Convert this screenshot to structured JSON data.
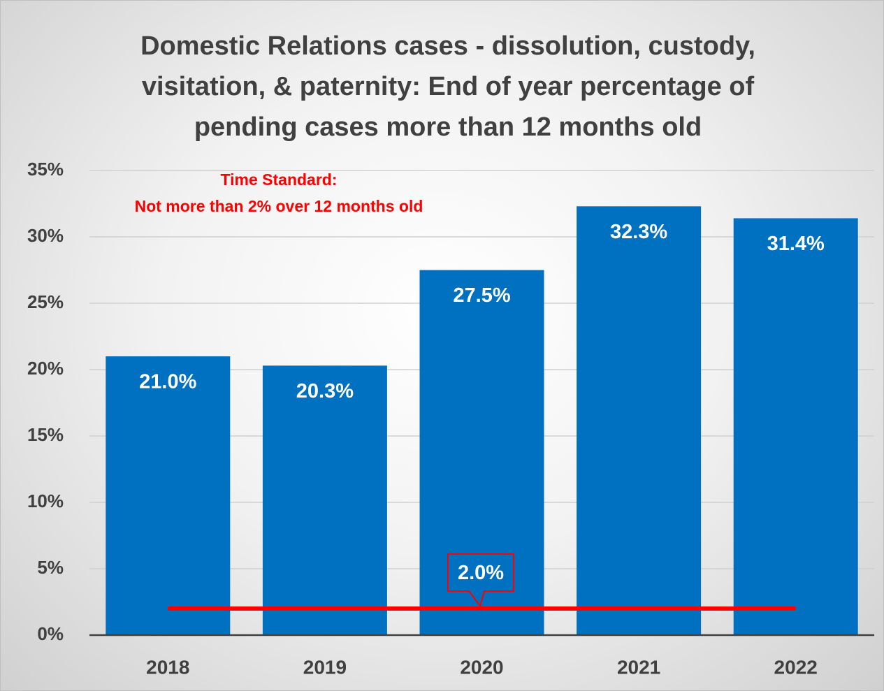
{
  "chart_data": {
    "type": "bar",
    "title": "Domestic Relations cases - dissolution, custody, visitation, & paternity: End of year percentage of pending cases more than 12 months old",
    "categories": [
      "2018",
      "2019",
      "2020",
      "2021",
      "2022"
    ],
    "values": [
      21.0,
      20.3,
      27.5,
      32.3,
      31.4
    ],
    "value_labels": [
      "21.0%",
      "20.3%",
      "27.5%",
      "32.3%",
      "31.4%"
    ],
    "color": "#0070c0",
    "ylim": [
      0,
      35
    ],
    "yticks": [
      {
        "value": 0,
        "label": "0%"
      },
      {
        "value": 5,
        "label": "5%"
      },
      {
        "value": 10,
        "label": "10%"
      },
      {
        "value": 15,
        "label": "15%"
      },
      {
        "value": 20,
        "label": "20%"
      },
      {
        "value": 25,
        "label": "25%"
      },
      {
        "value": 30,
        "label": "30%"
      },
      {
        "value": 35,
        "label": "35%"
      }
    ],
    "grid": true,
    "standard": {
      "value": 2,
      "label": "2.0%",
      "color": "#ff0000"
    },
    "annotations": [
      "Time Standard:",
      "Not more than 2% over 12 months old"
    ]
  }
}
